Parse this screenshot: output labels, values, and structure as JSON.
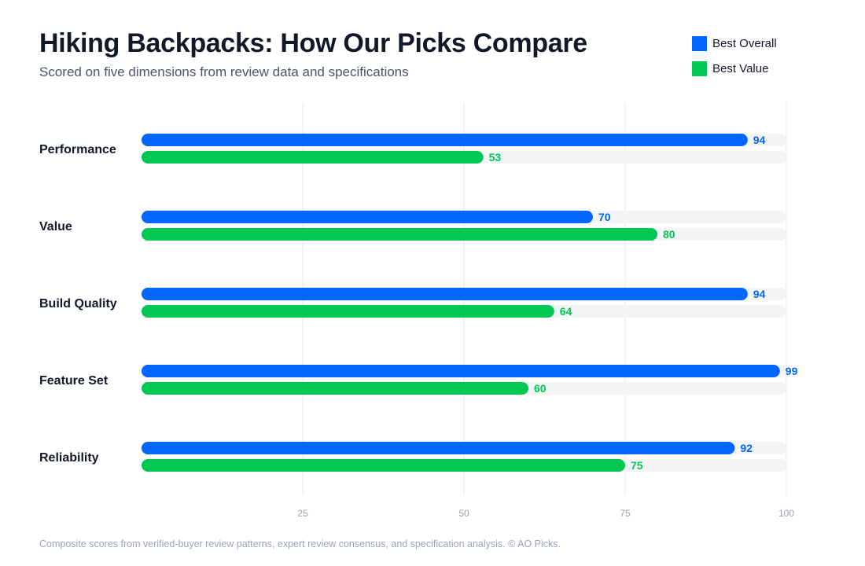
{
  "chart_data": {
    "type": "bar",
    "orientation": "horizontal",
    "title": "Hiking Backpacks: How Our Picks Compare",
    "subtitle": "Scored on five dimensions from review data and specifications",
    "categories": [
      "Performance",
      "Value",
      "Build Quality",
      "Feature Set",
      "Reliability"
    ],
    "series": [
      {
        "name": "Best Overall",
        "color": "#0066ff",
        "values": [
          94,
          70,
          94,
          99,
          92
        ]
      },
      {
        "name": "Best Value",
        "color": "#00c853",
        "values": [
          53,
          80,
          64,
          60,
          75
        ]
      }
    ],
    "xlim": [
      0,
      100
    ],
    "xticks": [
      25,
      50,
      75,
      100
    ],
    "grid": "vertical",
    "legend_position": "top-right",
    "track_color": "#f3f4f6",
    "footnote": "Composite scores from verified-buyer review patterns, expert review consensus, and specification analysis. © AO Picks."
  }
}
